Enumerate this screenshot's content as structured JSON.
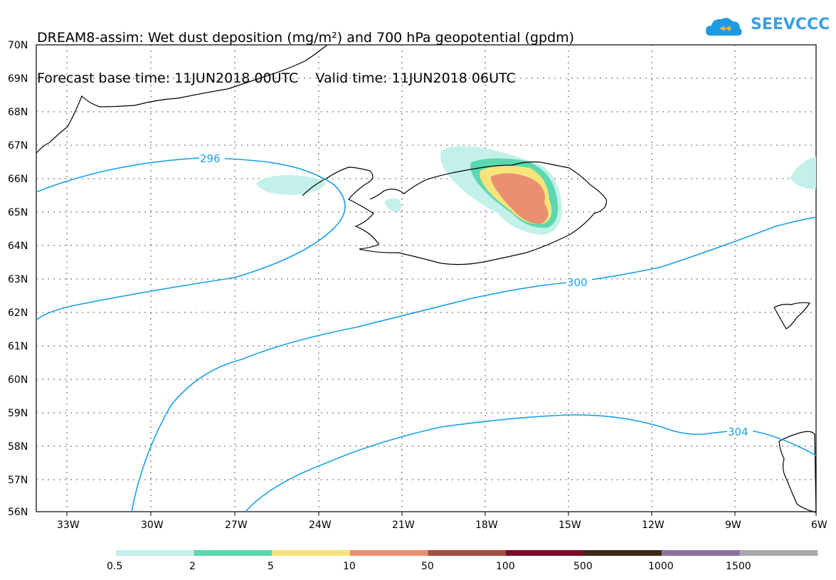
{
  "title": {
    "line1": "DREAM8-assim: Wet dust deposition (mg/m²) and 700 hPa geopotential (gpdm)",
    "line2": "Forecast base time: 11JUN2018 00UTC    Valid time: 11JUN2018 06UTC"
  },
  "logo": {
    "text": "SEEVCCC",
    "icon": "cloud-logo-icon",
    "color": "#1e9be0"
  },
  "map": {
    "lat_labels": [
      "70N",
      "69N",
      "68N",
      "67N",
      "66N",
      "65N",
      "64N",
      "63N",
      "62N",
      "61N",
      "60N",
      "59N",
      "58N",
      "57N",
      "56N"
    ],
    "lon_labels": [
      "33W",
      "30W",
      "27W",
      "24W",
      "21W",
      "18W",
      "15W",
      "12W",
      "9W",
      "6W"
    ],
    "contour_labels": [
      "296",
      "300",
      "304"
    ],
    "contour_color": "#1aa0e8"
  },
  "legend": {
    "colors": [
      "#c4f0ea",
      "#5cd8b0",
      "#f6e47a",
      "#ea8f70",
      "#a64c40",
      "#7a0a28",
      "#3a2818",
      "#9070a0",
      "#a8a8a8"
    ],
    "labels": [
      "0.5",
      "2",
      "5",
      "10",
      "50",
      "100",
      "500",
      "1000",
      "1500"
    ]
  }
}
